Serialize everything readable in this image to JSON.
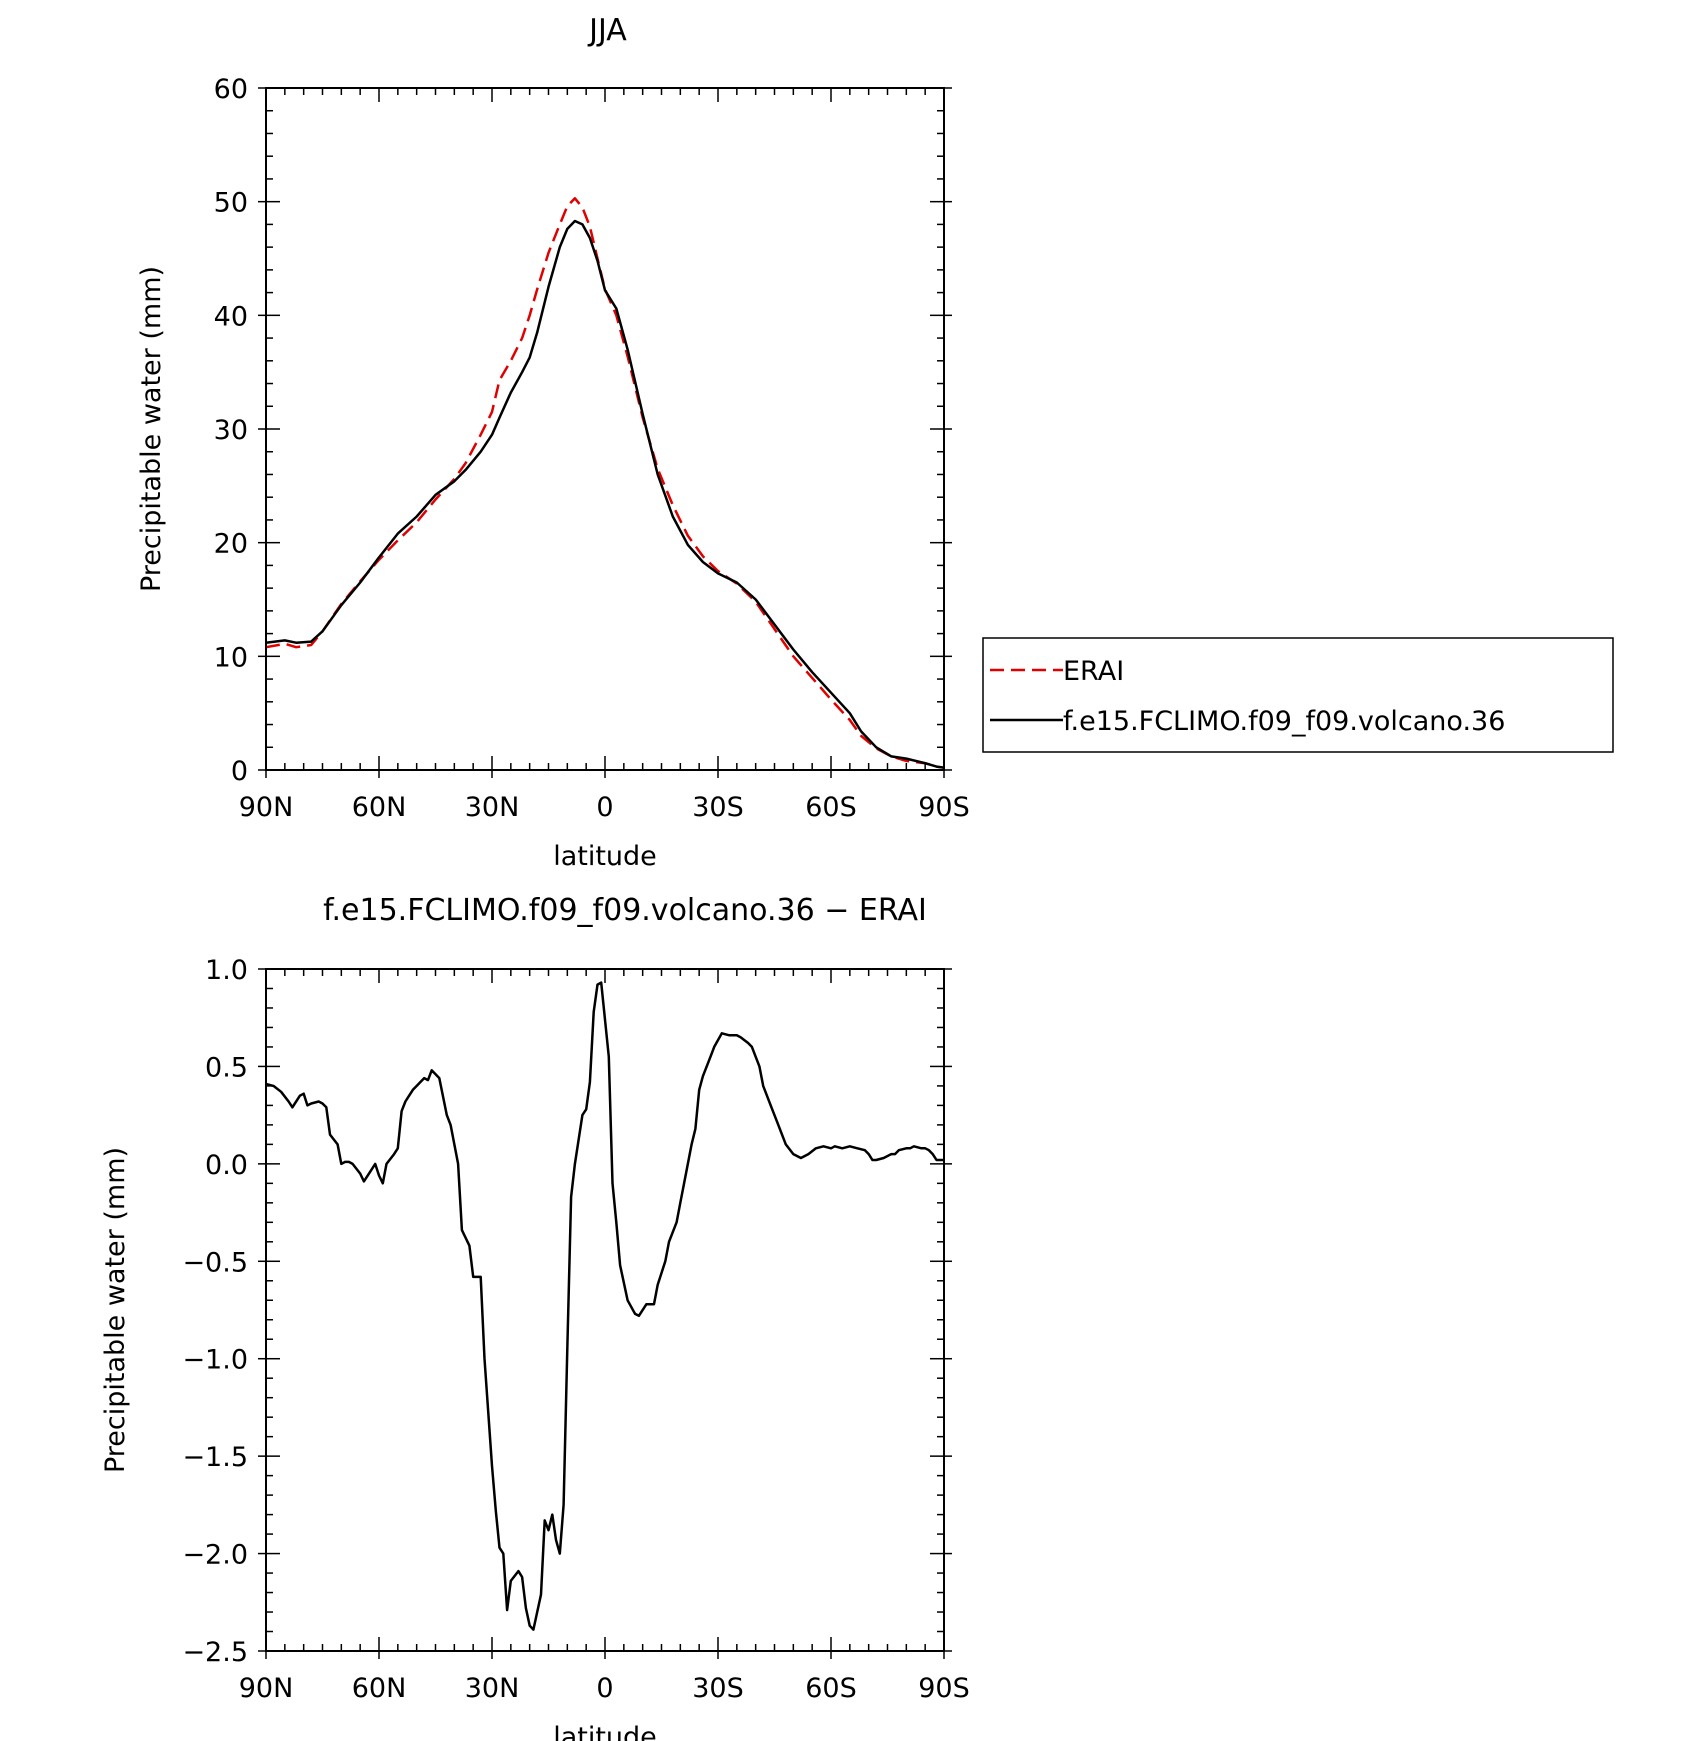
{
  "chart_data": [
    {
      "type": "line",
      "title": "JJA",
      "xlabel": "latitude",
      "ylabel": "Precipitable water (mm)",
      "xlim": [
        90,
        -90
      ],
      "ylim": [
        0,
        60
      ],
      "x_tick_values": [
        90,
        60,
        30,
        0,
        -30,
        -60,
        -90
      ],
      "x_tick_labels": [
        "90N",
        "60N",
        "30N",
        "0",
        "30S",
        "60S",
        "90S"
      ],
      "y_tick_values": [
        0,
        10,
        20,
        30,
        40,
        50,
        60
      ],
      "y_tick_labels": [
        "0",
        "10",
        "20",
        "30",
        "40",
        "50",
        "60"
      ],
      "grid": false,
      "legend_position": "right",
      "series": [
        {
          "name": "ERAI",
          "color": "#e00000",
          "style": "dashed",
          "x": [
            90,
            85,
            82,
            78,
            75,
            70,
            65,
            60,
            55,
            50,
            45,
            40,
            37,
            33,
            30,
            28,
            25,
            22,
            20,
            18,
            15,
            12,
            10,
            8,
            6,
            4,
            2,
            0,
            -3,
            -6,
            -10,
            -14,
            -18,
            -22,
            -26,
            -30,
            -35,
            -40,
            -45,
            -50,
            -55,
            -60,
            -65,
            -68,
            -72,
            -76,
            -80,
            -85,
            -88,
            -90
          ],
          "values": [
            10.8,
            11.1,
            10.8,
            11.0,
            12.2,
            14.6,
            16.6,
            18.5,
            20.2,
            21.8,
            23.8,
            25.6,
            27.0,
            29.5,
            31.5,
            34.3,
            36.0,
            38.0,
            40.0,
            42.3,
            45.5,
            48.0,
            49.6,
            50.3,
            49.5,
            47.8,
            45.0,
            42.3,
            40.0,
            36.4,
            31.0,
            26.5,
            23.3,
            20.6,
            18.8,
            17.5,
            16.4,
            14.8,
            12.4,
            10.0,
            8.1,
            6.2,
            4.4,
            3.0,
            1.9,
            1.2,
            0.8,
            0.6,
            0.3,
            0.2
          ]
        },
        {
          "name": "f.e15.FCLIMO.f09_f09.volcano.36",
          "color": "#000000",
          "style": "solid",
          "x": [
            90,
            85,
            82,
            78,
            75,
            70,
            65,
            60,
            55,
            50,
            45,
            40,
            37,
            33,
            30,
            28,
            25,
            22,
            20,
            18,
            15,
            12,
            10,
            8,
            6,
            4,
            2,
            0,
            -3,
            -6,
            -10,
            -14,
            -18,
            -22,
            -26,
            -30,
            -35,
            -40,
            -45,
            -50,
            -55,
            -60,
            -65,
            -68,
            -72,
            -76,
            -80,
            -85,
            -88,
            -90
          ],
          "values": [
            11.2,
            11.4,
            11.2,
            11.3,
            12.2,
            14.5,
            16.5,
            18.7,
            20.8,
            22.3,
            24.2,
            25.4,
            26.4,
            28.0,
            29.5,
            31.0,
            33.2,
            35.0,
            36.3,
            38.5,
            42.5,
            46.0,
            47.6,
            48.3,
            48.0,
            46.8,
            44.8,
            42.2,
            40.6,
            37.0,
            31.3,
            26.0,
            22.3,
            19.8,
            18.3,
            17.3,
            16.5,
            15.0,
            12.8,
            10.6,
            8.6,
            6.8,
            5.0,
            3.4,
            2.0,
            1.2,
            1.0,
            0.6,
            0.3,
            0.2
          ]
        }
      ]
    },
    {
      "type": "line",
      "title": "f.e15.FCLIMO.f09_f09.volcano.36 − ERAI",
      "xlabel": "latitude",
      "ylabel": "Precipitable water (mm)",
      "xlim": [
        90,
        -90
      ],
      "ylim": [
        -2.5,
        1.0
      ],
      "x_tick_values": [
        90,
        60,
        30,
        0,
        -30,
        -60,
        -90
      ],
      "x_tick_labels": [
        "90N",
        "60N",
        "30N",
        "0",
        "30S",
        "60S",
        "90S"
      ],
      "y_tick_values": [
        1.0,
        0.5,
        0.0,
        -0.5,
        -1.0,
        -1.5,
        -2.0,
        -2.5
      ],
      "y_tick_labels": [
        "1.0",
        "0.5",
        "0.0",
        "−0.5",
        "−1.0",
        "−1.5",
        "−2.0",
        "−2.5"
      ],
      "grid": false,
      "series": [
        {
          "color": "#000000",
          "style": "solid",
          "x": [
            90,
            88,
            86,
            84,
            83,
            81,
            80,
            79,
            78,
            76,
            75,
            74,
            73,
            71,
            70,
            69,
            68,
            67,
            65,
            64,
            62,
            61,
            60,
            59,
            58,
            56,
            55,
            54,
            53,
            52,
            51,
            50,
            48,
            47,
            46,
            44,
            42,
            41,
            39,
            38,
            36,
            35,
            33,
            32,
            30,
            29,
            28,
            27,
            26,
            25,
            23,
            22,
            21,
            20,
            19,
            17,
            16,
            15,
            14,
            13,
            12,
            11,
            10,
            9,
            8,
            6,
            5,
            4,
            3,
            2,
            1,
            -1,
            -2,
            -3,
            -4,
            -6,
            -8,
            -9,
            -11,
            -13,
            -14,
            -16,
            -17,
            -19,
            -20,
            -21,
            -23,
            -24,
            -25,
            -26,
            -28,
            -29,
            -31,
            -33,
            -35,
            -36,
            -38,
            -39,
            -41,
            -42,
            -44,
            -46,
            -48,
            -50,
            -52,
            -54,
            -56,
            -58,
            -60,
            -61,
            -63,
            -65,
            -67,
            -69,
            -70,
            -71,
            -72,
            -74,
            -76,
            -77,
            -78,
            -80,
            -81,
            -82,
            -84,
            -85,
            -86,
            -87,
            -88,
            -90
          ],
          "values": [
            0.41,
            0.4,
            0.37,
            0.32,
            0.29,
            0.35,
            0.36,
            0.3,
            0.31,
            0.32,
            0.31,
            0.29,
            0.15,
            0.1,
            0.0,
            0.01,
            0.01,
            0.0,
            -0.05,
            -0.09,
            -0.03,
            0.0,
            -0.06,
            -0.1,
            0.0,
            0.05,
            0.08,
            0.27,
            0.32,
            0.35,
            0.38,
            0.4,
            0.44,
            0.43,
            0.48,
            0.44,
            0.25,
            0.2,
            0.0,
            -0.34,
            -0.42,
            -0.58,
            -0.58,
            -1.0,
            -1.55,
            -1.78,
            -1.97,
            -2.0,
            -2.29,
            -2.14,
            -2.09,
            -2.12,
            -2.28,
            -2.37,
            -2.39,
            -2.21,
            -1.83,
            -1.88,
            -1.8,
            -1.93,
            -2.0,
            -1.75,
            -0.95,
            -0.17,
            0.0,
            0.25,
            0.28,
            0.42,
            0.78,
            0.92,
            0.93,
            0.55,
            -0.1,
            -0.3,
            -0.52,
            -0.7,
            -0.77,
            -0.78,
            -0.72,
            -0.72,
            -0.62,
            -0.5,
            -0.4,
            -0.3,
            -0.2,
            -0.1,
            0.1,
            0.18,
            0.38,
            0.45,
            0.55,
            0.6,
            0.67,
            0.66,
            0.66,
            0.65,
            0.62,
            0.6,
            0.5,
            0.4,
            0.3,
            0.2,
            0.1,
            0.05,
            0.03,
            0.05,
            0.08,
            0.09,
            0.08,
            0.09,
            0.08,
            0.09,
            0.08,
            0.07,
            0.05,
            0.02,
            0.02,
            0.03,
            0.05,
            0.05,
            0.07,
            0.08,
            0.08,
            0.09,
            0.08,
            0.08,
            0.07,
            0.05,
            0.02,
            0.02
          ]
        }
      ]
    }
  ]
}
